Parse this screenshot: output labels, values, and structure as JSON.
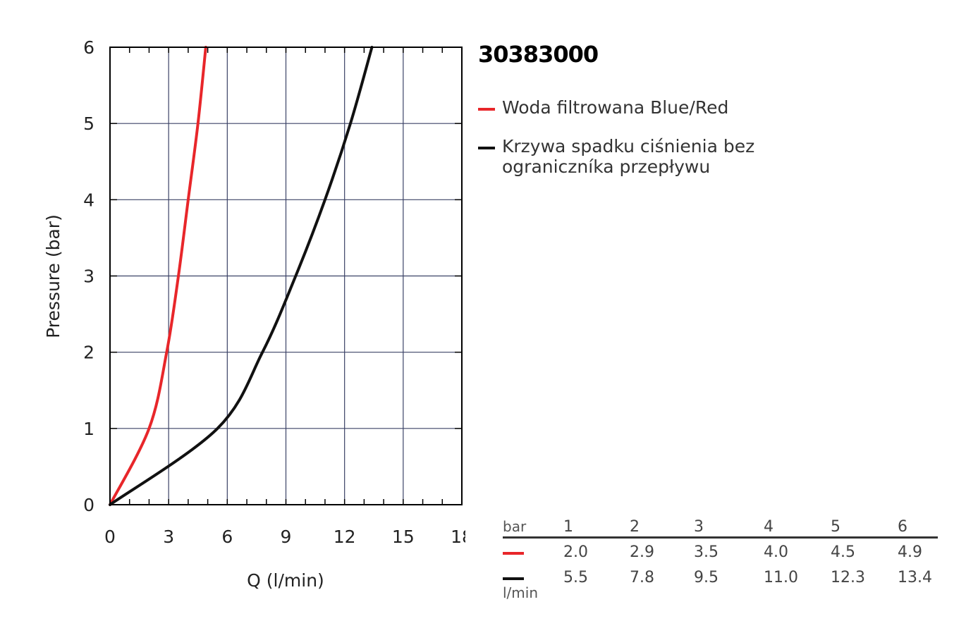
{
  "title": "30383000",
  "colors": {
    "series1": "#e8262a",
    "series2": "#111111",
    "grid": "#3b4266"
  },
  "legend": [
    {
      "label": "Woda filtrowana Blue/Red",
      "color": "#e8262a"
    },
    {
      "label": "Krzywa spadku ciśnienia bez ograniczníka przepływu",
      "color": "#111111"
    }
  ],
  "table": {
    "header_unit": "bar",
    "pressures": [
      "1",
      "2",
      "3",
      "4",
      "5",
      "6"
    ],
    "row1": [
      "2.0",
      "2.9",
      "3.5",
      "4.0",
      "4.5",
      "4.9"
    ],
    "row2": [
      "5.5",
      "7.8",
      "9.5",
      "11.0",
      "12.3",
      "13.4"
    ],
    "flow_unit": "l/min"
  },
  "chart_data": {
    "type": "line",
    "title": "",
    "xlabel": "Q (l/min)",
    "ylabel": "Pressure (bar)",
    "xlim": [
      0,
      18
    ],
    "ylim": [
      0,
      6
    ],
    "xticks": [
      "0",
      "3",
      "6",
      "9",
      "12",
      "15",
      "18"
    ],
    "yticks": [
      "0",
      "1",
      "2",
      "3",
      "4",
      "5",
      "6"
    ],
    "grid": true,
    "series": [
      {
        "name": "Woda filtrowana Blue/Red",
        "color": "#e8262a",
        "x": [
          0,
          2.0,
          2.9,
          3.5,
          4.0,
          4.5,
          4.9
        ],
        "y": [
          0,
          1,
          2,
          3,
          4,
          5,
          6
        ]
      },
      {
        "name": "Krzywa spadku ciśnienia bez ograniczníka przepływu",
        "color": "#111111",
        "x": [
          0,
          5.5,
          7.8,
          9.5,
          11.0,
          12.3,
          13.4
        ],
        "y": [
          0,
          1,
          2,
          3,
          4,
          5,
          6
        ]
      }
    ]
  }
}
